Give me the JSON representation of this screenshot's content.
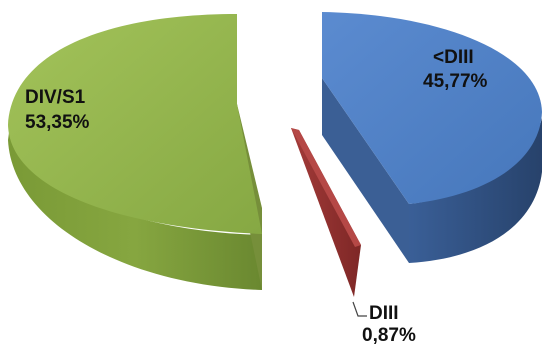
{
  "chart_data": {
    "type": "pie",
    "style": "3d-exploded",
    "slices": [
      {
        "label": "DIV/S1",
        "value_text": "53,35%",
        "value": 53.35,
        "color": "#8faf47",
        "side_color": "#6e8b33",
        "edge_color": "#7d9b3e"
      },
      {
        "label": "<DIII",
        "value_text": "45,77%",
        "value": 45.77,
        "color": "#4f7fc0",
        "side_color": "#2c4b78",
        "edge_color": "#3e6aa6"
      },
      {
        "label": "DIII",
        "value_text": "0,87%",
        "value": 0.87,
        "color": "#b54846",
        "side_color": "#8a2d2c",
        "edge_color": "#9c3a38"
      }
    ]
  }
}
